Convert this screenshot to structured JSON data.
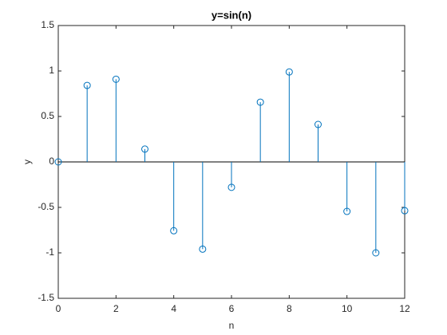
{
  "chart_data": {
    "type": "stem",
    "title": "y=sin(n)",
    "x_label": "n",
    "y_label": "y",
    "x": [
      0,
      1,
      2,
      3,
      4,
      5,
      6,
      7,
      8,
      9,
      10,
      11,
      12
    ],
    "values": [
      0,
      0.8415,
      0.9093,
      0.1411,
      -0.7568,
      -0.9589,
      -0.2794,
      0.657,
      0.9894,
      0.4121,
      -0.544,
      -1.0,
      -0.5366
    ],
    "color": "#0072bd",
    "xlim": [
      0,
      12
    ],
    "xticks": [
      0,
      2,
      4,
      6,
      8,
      10,
      12
    ],
    "ylim": [
      -1.5,
      1.5
    ],
    "yticks": [
      -1.5,
      -1,
      -0.5,
      0,
      0.5,
      1,
      1.5
    ]
  }
}
